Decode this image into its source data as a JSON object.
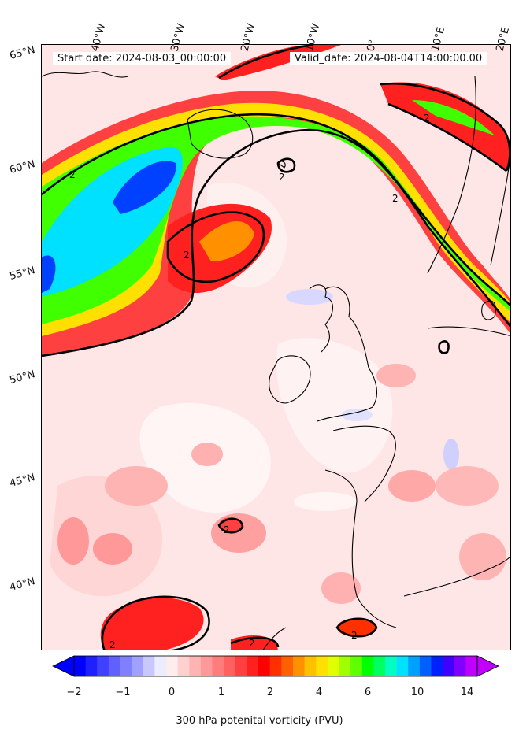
{
  "header": {
    "start_date": "Start date: 2024-08-03_00:00:00",
    "valid_date": "Valid_date: 2024-08-04T14:00:00.00"
  },
  "longitude_labels": [
    "40°W",
    "30°W",
    "20°W",
    "10°W",
    "0°",
    "10°E",
    "20°E"
  ],
  "latitude_labels": [
    "65°N",
    "60°N",
    "55°N",
    "50°N",
    "45°N",
    "40°N"
  ],
  "contour_labels": [
    "2",
    "2",
    "2",
    "2",
    "2",
    "2",
    "2",
    "2",
    "2"
  ],
  "colorbar": {
    "ticks": [
      "−2",
      "−1",
      "0",
      "1",
      "2",
      "4",
      "6",
      "10",
      "14"
    ],
    "label": "300 hPa potenital vorticity (PVU)",
    "colors": [
      "#0000ff",
      "#2020ff",
      "#4040ff",
      "#6060ff",
      "#8080ff",
      "#a0a0ff",
      "#c8c8ff",
      "#ececff",
      "#ffecec",
      "#ffd0d0",
      "#ffb4b4",
      "#ff9898",
      "#ff7c7c",
      "#ff6060",
      "#ff4040",
      "#ff2020",
      "#ff0000",
      "#ff3000",
      "#ff6000",
      "#ff9000",
      "#ffc000",
      "#ffe000",
      "#e0ff00",
      "#a0ff00",
      "#60ff00",
      "#00ff00",
      "#00ff60",
      "#00ffc0",
      "#00e0ff",
      "#00a0ff",
      "#0060ff",
      "#0020ff",
      "#4000ff",
      "#8000ff",
      "#c000ff"
    ]
  },
  "colors": {
    "background": "#ffe6e6",
    "contour": "#000000"
  }
}
